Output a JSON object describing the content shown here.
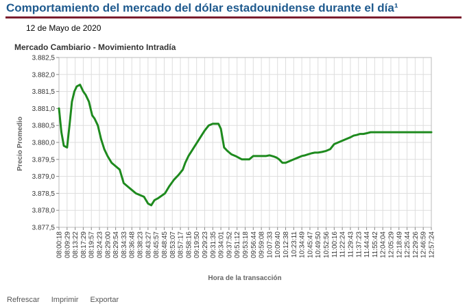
{
  "page": {
    "title": "Comportamiento del mercado del dólar estadounidense durante el día¹",
    "date": "12 de Mayo de 2020"
  },
  "footer": {
    "links": [
      "Refrescar",
      "Imprimir",
      "Exportar"
    ]
  },
  "colors": {
    "title": "#1f5a8e",
    "rule": "#7b1c2e",
    "line": "#1e8a1e",
    "grid": "#dddddd"
  },
  "chart_data": {
    "type": "line",
    "title": "Mercado Cambiario - Movimiento Intradía",
    "xlabel": "Hora de la transacción",
    "ylabel": "Precio Promedio",
    "ylim": [
      3877.5,
      3882.5
    ],
    "y_ticks": [
      "3.877,5",
      "3.878,0",
      "3.878,5",
      "3.879,0",
      "3.879,5",
      "3.880,0",
      "3.880,5",
      "3.881,0",
      "3.881,5",
      "3.882,0",
      "3.882,5"
    ],
    "categories": [
      "08:00:18",
      "08:09:29",
      "08:13:22",
      "08:17:29",
      "08:19:57",
      "08:24:23",
      "08:29:00",
      "08:29:54",
      "08:34:33",
      "08:36:48",
      "08:38:23",
      "08:43:27",
      "08:45:57",
      "08:48:45",
      "08:53:07",
      "08:57:17",
      "08:58:16",
      "09:19:50",
      "09:29:23",
      "09:31:35",
      "09:34:01",
      "09:37:52",
      "09:51:12",
      "09:53:18",
      "09:56:44",
      "09:59:08",
      "10:07:33",
      "10:09:40",
      "10:12:38",
      "10:23:11",
      "10:34:49",
      "10:45:47",
      "10:49:50",
      "10:52:56",
      "11:00:16",
      "11:22:24",
      "11:29:43",
      "11:37:23",
      "11:44:44",
      "11:55:42",
      "12:04:04",
      "12:05:29",
      "12:18:49",
      "12:25:44",
      "12:29:26",
      "12:46:59",
      "12:57:24"
    ],
    "grid": true,
    "legend": "none",
    "series": [
      {
        "x": [
          0,
          0.3,
          0.6,
          1.0,
          1.3,
          1.6,
          1.9,
          2.2,
          2.6,
          3.0,
          3.3,
          3.7,
          4.1,
          4.4,
          4.8,
          5.2,
          5.6,
          6.0,
          6.5,
          7.0,
          7.5,
          8.0,
          8.5,
          9.0,
          9.5,
          10.0,
          10.5,
          11.0,
          11.4,
          11.8,
          12.2,
          12.5,
          12.8,
          13.1,
          13.6,
          14.2,
          14.8,
          15.3,
          15.6,
          16.0,
          16.4,
          16.8,
          17.2,
          17.6,
          18.0,
          18.5,
          19.0,
          19.4,
          19.7,
          20.0,
          20.4,
          20.8,
          21.3,
          21.8,
          22.2,
          22.6,
          23.0,
          23.5,
          24.0,
          24.4,
          24.8,
          25.2,
          25.6,
          26.0,
          26.3,
          26.6,
          26.9,
          27.2,
          27.6,
          28.0,
          28.5,
          29.0,
          29.5,
          30.0,
          30.4,
          30.8,
          31.2,
          31.6,
          32.0,
          32.5,
          33.0,
          33.5,
          34.0,
          34.5,
          35.0,
          35.5,
          36.0,
          36.4,
          36.8,
          37.2,
          37.6,
          38.0,
          38.5,
          39.0,
          39.5,
          40.0,
          40.5,
          41.0,
          41.5,
          42.0,
          42.4,
          42.8,
          43.2,
          43.6,
          44.0,
          44.5,
          45.0,
          45.5,
          46.0
        ],
        "y": [
          3881.0,
          3880.3,
          3879.9,
          3879.85,
          3880.5,
          3881.2,
          3881.5,
          3881.65,
          3881.7,
          3881.5,
          3881.4,
          3881.2,
          3880.8,
          3880.7,
          3880.5,
          3880.1,
          3879.8,
          3879.6,
          3879.4,
          3879.3,
          3879.2,
          3878.8,
          3878.7,
          3878.6,
          3878.5,
          3878.45,
          3878.4,
          3878.2,
          3878.15,
          3878.3,
          3878.35,
          3878.4,
          3878.45,
          3878.5,
          3878.7,
          3878.9,
          3879.05,
          3879.2,
          3879.4,
          3879.6,
          3879.75,
          3879.9,
          3880.05,
          3880.2,
          3880.35,
          3880.5,
          3880.55,
          3880.55,
          3880.55,
          3880.4,
          3879.85,
          3879.75,
          3879.65,
          3879.6,
          3879.55,
          3879.5,
          3879.5,
          3879.5,
          3879.6,
          3879.6,
          3879.6,
          3879.6,
          3879.6,
          3879.62,
          3879.6,
          3879.58,
          3879.55,
          3879.5,
          3879.4,
          3879.4,
          3879.45,
          3879.5,
          3879.55,
          3879.6,
          3879.62,
          3879.65,
          3879.68,
          3879.7,
          3879.7,
          3879.72,
          3879.75,
          3879.8,
          3879.95,
          3880.0,
          3880.05,
          3880.1,
          3880.15,
          3880.2,
          3880.22,
          3880.25,
          3880.25,
          3880.27,
          3880.3,
          3880.3,
          3880.3,
          3880.3,
          3880.3,
          3880.3,
          3880.3,
          3880.3,
          3880.3,
          3880.3,
          3880.3,
          3880.3,
          3880.3,
          3880.3,
          3880.3,
          3880.3,
          3880.3
        ]
      }
    ]
  }
}
